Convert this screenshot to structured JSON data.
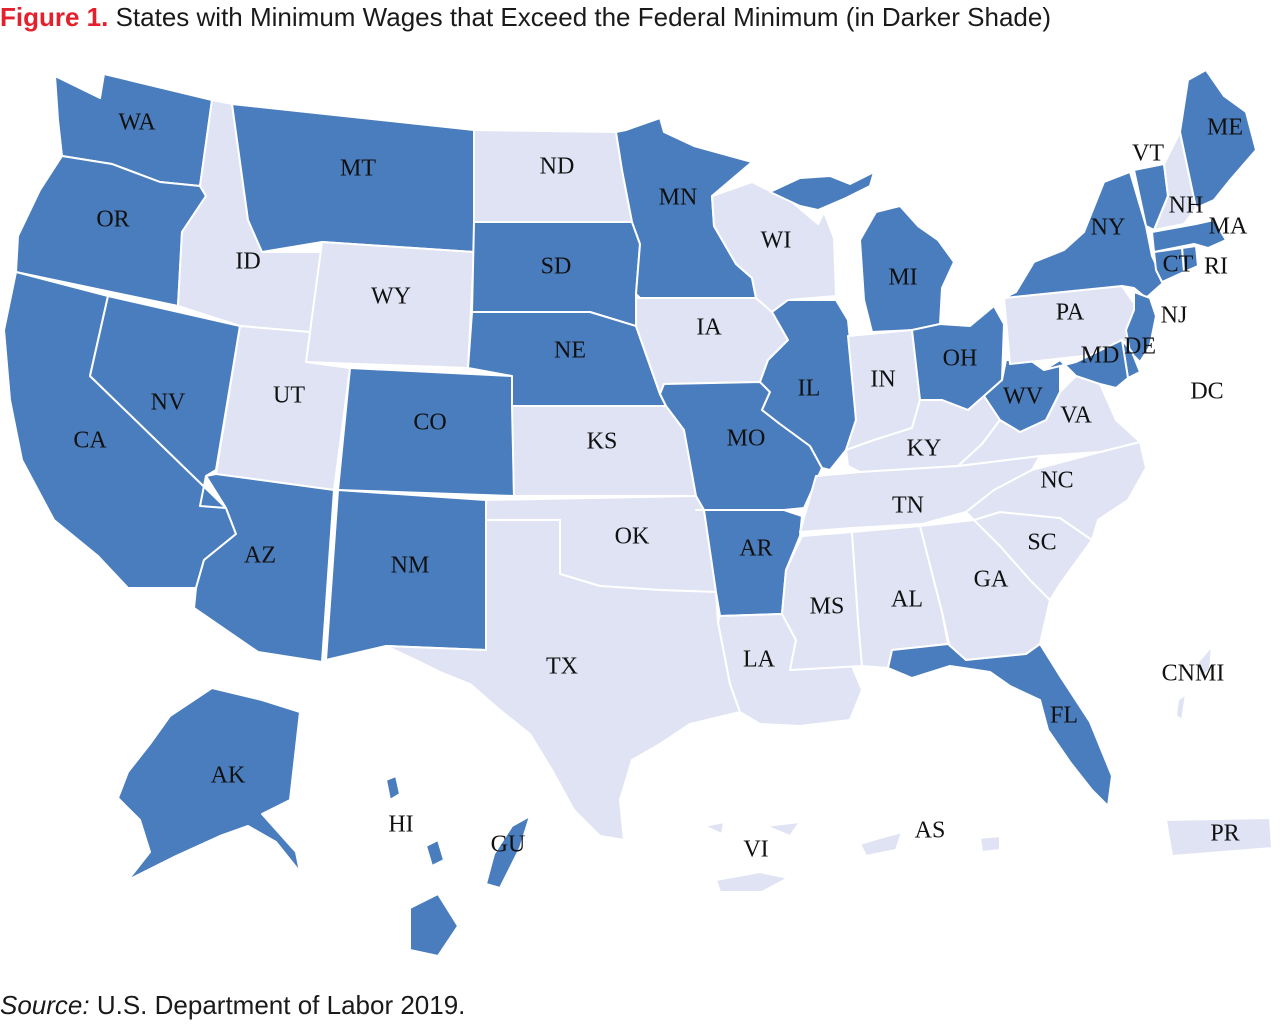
{
  "title": {
    "figure_label": "Figure 1.",
    "text": "States with Minimum Wages that Exceed the Federal Minimum (in Darker Shade)"
  },
  "source": {
    "label": "Source:",
    "text": "U.S. Department of Labor 2019."
  },
  "colors": {
    "exceeds_federal": "#4a7dbd",
    "not_exceeding": "#dfe3f3",
    "border": "#ffffff"
  },
  "states": [
    {
      "code": "WA",
      "exceeds": true
    },
    {
      "code": "OR",
      "exceeds": true
    },
    {
      "code": "CA",
      "exceeds": true
    },
    {
      "code": "NV",
      "exceeds": true
    },
    {
      "code": "ID",
      "exceeds": false
    },
    {
      "code": "MT",
      "exceeds": true
    },
    {
      "code": "WY",
      "exceeds": false
    },
    {
      "code": "UT",
      "exceeds": false
    },
    {
      "code": "AZ",
      "exceeds": true
    },
    {
      "code": "CO",
      "exceeds": true
    },
    {
      "code": "NM",
      "exceeds": true
    },
    {
      "code": "ND",
      "exceeds": false
    },
    {
      "code": "SD",
      "exceeds": true
    },
    {
      "code": "NE",
      "exceeds": true
    },
    {
      "code": "KS",
      "exceeds": false
    },
    {
      "code": "OK",
      "exceeds": false
    },
    {
      "code": "TX",
      "exceeds": false
    },
    {
      "code": "MN",
      "exceeds": true
    },
    {
      "code": "IA",
      "exceeds": false
    },
    {
      "code": "MO",
      "exceeds": true
    },
    {
      "code": "AR",
      "exceeds": true
    },
    {
      "code": "LA",
      "exceeds": false
    },
    {
      "code": "WI",
      "exceeds": false
    },
    {
      "code": "IL",
      "exceeds": true
    },
    {
      "code": "MI",
      "exceeds": true
    },
    {
      "code": "IN",
      "exceeds": false
    },
    {
      "code": "OH",
      "exceeds": true
    },
    {
      "code": "KY",
      "exceeds": false
    },
    {
      "code": "TN",
      "exceeds": false
    },
    {
      "code": "MS",
      "exceeds": false
    },
    {
      "code": "AL",
      "exceeds": false
    },
    {
      "code": "GA",
      "exceeds": false
    },
    {
      "code": "FL",
      "exceeds": true
    },
    {
      "code": "SC",
      "exceeds": false
    },
    {
      "code": "NC",
      "exceeds": false
    },
    {
      "code": "VA",
      "exceeds": false
    },
    {
      "code": "WV",
      "exceeds": true
    },
    {
      "code": "PA",
      "exceeds": false
    },
    {
      "code": "NY",
      "exceeds": true
    },
    {
      "code": "VT",
      "exceeds": true
    },
    {
      "code": "NH",
      "exceeds": false
    },
    {
      "code": "ME",
      "exceeds": true
    },
    {
      "code": "MA",
      "exceeds": true
    },
    {
      "code": "RI",
      "exceeds": true
    },
    {
      "code": "CT",
      "exceeds": true
    },
    {
      "code": "NJ",
      "exceeds": true
    },
    {
      "code": "DE",
      "exceeds": true
    },
    {
      "code": "MD",
      "exceeds": true
    },
    {
      "code": "DC",
      "exceeds": true
    },
    {
      "code": "AK",
      "exceeds": true
    },
    {
      "code": "HI",
      "exceeds": true
    },
    {
      "code": "GU",
      "exceeds": true
    },
    {
      "code": "CNMI",
      "exceeds": false
    },
    {
      "code": "VI",
      "exceeds": false
    },
    {
      "code": "AS",
      "exceeds": false
    },
    {
      "code": "PR",
      "exceeds": false
    }
  ]
}
